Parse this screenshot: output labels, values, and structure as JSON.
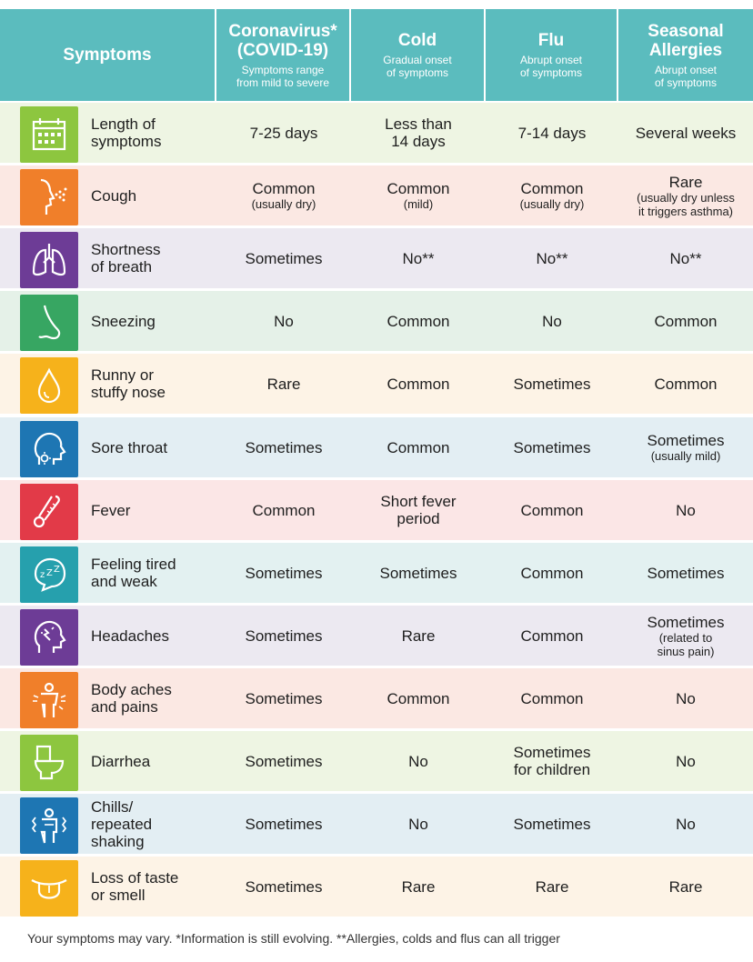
{
  "header": {
    "symptoms": "Symptoms",
    "columns": [
      {
        "title": "Coronavirus*",
        "title2": "(COVID-19)",
        "sub1": "Symptoms range",
        "sub2": "from mild to severe"
      },
      {
        "title": "Cold",
        "title2": "",
        "sub1": "Gradual onset",
        "sub2": "of symptoms"
      },
      {
        "title": "Flu",
        "title2": "",
        "sub1": "Abrupt onset",
        "sub2": "of symptoms"
      },
      {
        "title": "Seasonal",
        "title2": "Allergies",
        "sub1": "Abrupt onset",
        "sub2": "of symptoms"
      }
    ]
  },
  "rows": [
    {
      "icon": "calendar-icon",
      "color": "#8dc63f",
      "bg": "#eef5e3",
      "label1": "Length of",
      "label2": "symptoms",
      "v": [
        [
          "7-25 days",
          ""
        ],
        [
          "Less than",
          "14 days"
        ],
        [
          "7-14 days",
          ""
        ],
        [
          "Several weeks",
          ""
        ]
      ],
      "s": [
        "",
        "",
        "",
        ""
      ],
      "s2": [
        "",
        "",
        "",
        ""
      ]
    },
    {
      "icon": "cough-icon",
      "color": "#f07f2a",
      "bg": "#fbe8e3",
      "label1": "Cough",
      "label2": "",
      "v": [
        [
          "Common",
          ""
        ],
        [
          "Common",
          ""
        ],
        [
          "Common",
          ""
        ],
        [
          "Rare",
          ""
        ]
      ],
      "s": [
        "(usually dry)",
        "(mild)",
        "(usually dry)",
        "(usually dry unless"
      ],
      "s2": [
        "",
        "",
        "",
        "it triggers asthma)"
      ]
    },
    {
      "icon": "lungs-icon",
      "color": "#6d3c96",
      "bg": "#ece9f1",
      "label1": "Shortness",
      "label2": "of breath",
      "v": [
        [
          "Sometimes",
          ""
        ],
        [
          "No**",
          ""
        ],
        [
          "No**",
          ""
        ],
        [
          "No**",
          ""
        ]
      ],
      "s": [
        "",
        "",
        "",
        ""
      ],
      "s2": [
        "",
        "",
        "",
        ""
      ]
    },
    {
      "icon": "nose-icon",
      "color": "#37a662",
      "bg": "#e5f1e8",
      "label1": "Sneezing",
      "label2": "",
      "v": [
        [
          "No",
          ""
        ],
        [
          "Common",
          ""
        ],
        [
          "No",
          ""
        ],
        [
          "Common",
          ""
        ]
      ],
      "s": [
        "",
        "",
        "",
        ""
      ],
      "s2": [
        "",
        "",
        "",
        ""
      ]
    },
    {
      "icon": "drop-icon",
      "color": "#f6b21b",
      "bg": "#fdf3e6",
      "label1": "Runny or",
      "label2": "stuffy nose",
      "v": [
        [
          "Rare",
          ""
        ],
        [
          "Common",
          ""
        ],
        [
          "Sometimes",
          ""
        ],
        [
          "Common",
          ""
        ]
      ],
      "s": [
        "",
        "",
        "",
        ""
      ],
      "s2": [
        "",
        "",
        "",
        ""
      ]
    },
    {
      "icon": "throat-icon",
      "color": "#1e76b3",
      "bg": "#e3eef3",
      "label1": "Sore throat",
      "label2": "",
      "v": [
        [
          "Sometimes",
          ""
        ],
        [
          "Common",
          ""
        ],
        [
          "Sometimes",
          ""
        ],
        [
          "Sometimes",
          ""
        ]
      ],
      "s": [
        "",
        "",
        "",
        "(usually mild)"
      ],
      "s2": [
        "",
        "",
        "",
        ""
      ]
    },
    {
      "icon": "thermometer-icon",
      "color": "#e23a48",
      "bg": "#fbe6e6",
      "label1": "Fever",
      "label2": "",
      "v": [
        [
          "Common",
          ""
        ],
        [
          "Short fever",
          "period"
        ],
        [
          "Common",
          ""
        ],
        [
          "No",
          ""
        ]
      ],
      "s": [
        "",
        "",
        "",
        ""
      ],
      "s2": [
        "",
        "",
        "",
        ""
      ]
    },
    {
      "icon": "sleep-icon",
      "color": "#26a0ad",
      "bg": "#e3f1f1",
      "label1": "Feeling tired",
      "label2": "and weak",
      "v": [
        [
          "Sometimes",
          ""
        ],
        [
          "Sometimes",
          ""
        ],
        [
          "Common",
          ""
        ],
        [
          "Sometimes",
          ""
        ]
      ],
      "s": [
        "",
        "",
        "",
        ""
      ],
      "s2": [
        "",
        "",
        "",
        ""
      ]
    },
    {
      "icon": "headache-icon",
      "color": "#6d3c96",
      "bg": "#ece9f1",
      "label1": "Headaches",
      "label2": "",
      "v": [
        [
          "Sometimes",
          ""
        ],
        [
          "Rare",
          ""
        ],
        [
          "Common",
          ""
        ],
        [
          "Sometimes",
          ""
        ]
      ],
      "s": [
        "",
        "",
        "",
        "(related to"
      ],
      "s2": [
        "",
        "",
        "",
        "sinus pain)"
      ]
    },
    {
      "icon": "body-aches-icon",
      "color": "#f07f2a",
      "bg": "#fbe8e3",
      "label1": "Body aches",
      "label2": "and pains",
      "v": [
        [
          "Sometimes",
          ""
        ],
        [
          "Common",
          ""
        ],
        [
          "Common",
          ""
        ],
        [
          "No",
          ""
        ]
      ],
      "s": [
        "",
        "",
        "",
        ""
      ],
      "s2": [
        "",
        "",
        "",
        ""
      ]
    },
    {
      "icon": "toilet-icon",
      "color": "#8dc63f",
      "bg": "#eef5e3",
      "label1": "Diarrhea",
      "label2": "",
      "v": [
        [
          "Sometimes",
          ""
        ],
        [
          "No",
          ""
        ],
        [
          "Sometimes",
          "for children"
        ],
        [
          "No",
          ""
        ]
      ],
      "s": [
        "",
        "",
        "",
        ""
      ],
      "s2": [
        "",
        "",
        "",
        ""
      ]
    },
    {
      "icon": "shaking-icon",
      "color": "#1e76b3",
      "bg": "#e3eef3",
      "label1": "Chills/",
      "label2": "repeated",
      "label3": "shaking",
      "v": [
        [
          "Sometimes",
          ""
        ],
        [
          "No",
          ""
        ],
        [
          "Sometimes",
          ""
        ],
        [
          "No",
          ""
        ]
      ],
      "s": [
        "",
        "",
        "",
        ""
      ],
      "s2": [
        "",
        "",
        "",
        ""
      ]
    },
    {
      "icon": "tongue-icon",
      "color": "#f6b21b",
      "bg": "#fdf3e6",
      "label1": "Loss of taste",
      "label2": "or smell",
      "v": [
        [
          "Sometimes",
          ""
        ],
        [
          "Rare",
          ""
        ],
        [
          "Rare",
          ""
        ],
        [
          "Rare",
          ""
        ]
      ],
      "s": [
        "",
        "",
        "",
        ""
      ],
      "s2": [
        "",
        "",
        "",
        ""
      ]
    }
  ],
  "footer": "Your symptoms may vary. *Information is still evolving. **Allergies, colds and flus can all trigger"
}
